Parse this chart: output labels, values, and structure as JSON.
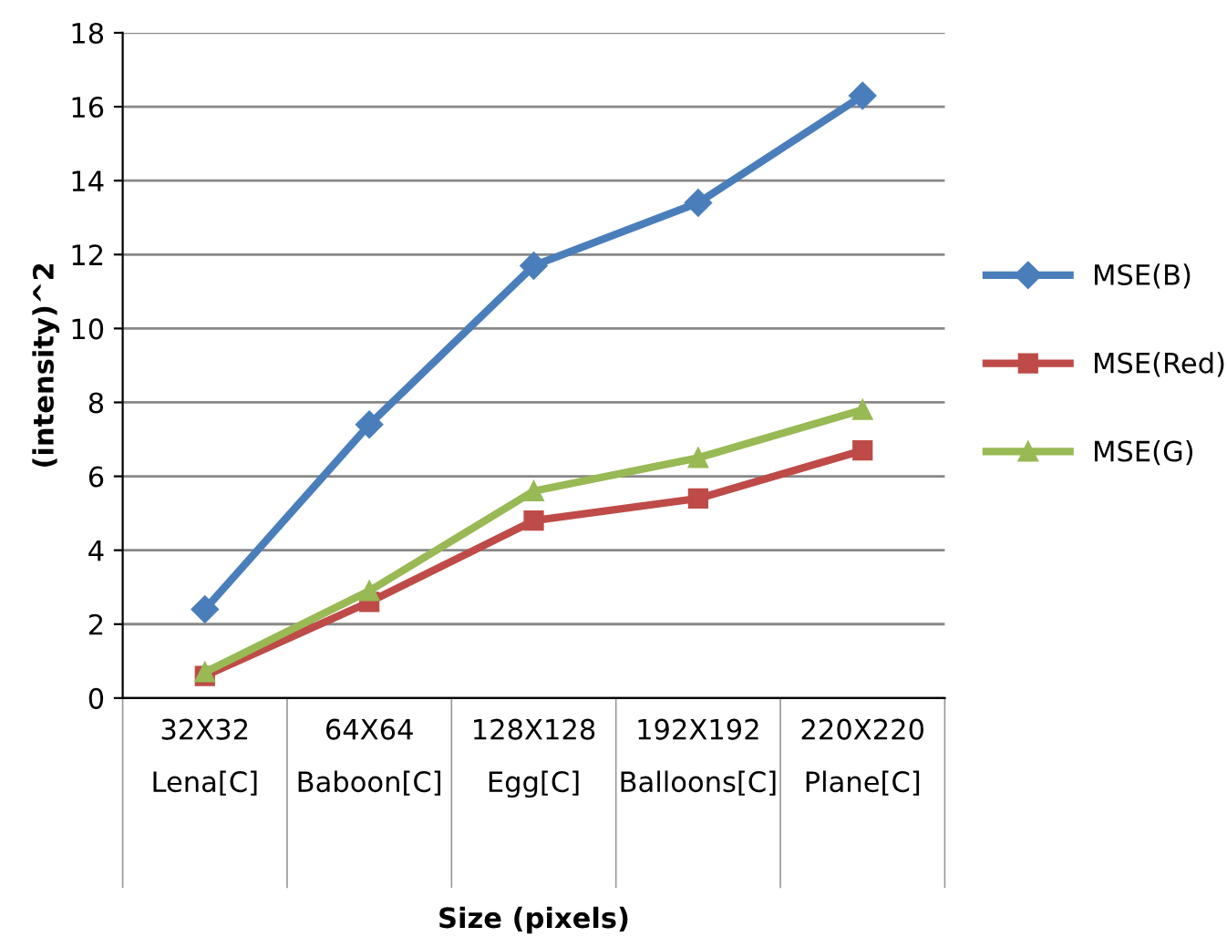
{
  "chart_data": {
    "type": "line",
    "xlabel": "Size (pixels)",
    "ylabel": "(intensity)^2",
    "categories": [
      "32X32\nLena[C]",
      "64X64\nBaboon[C]",
      "128X128\nEgg[C]",
      "192X192\nBalloons[C]",
      "220X220\nPlane[C]"
    ],
    "series": [
      {
        "name": "MSE(B)",
        "color": "#4a7ebb",
        "marker": "diamond",
        "values": [
          2.4,
          7.4,
          11.7,
          13.4,
          16.3
        ]
      },
      {
        "name": "MSE(Red)",
        "color": "#be4b48",
        "marker": "square",
        "values": [
          0.6,
          2.6,
          4.8,
          5.4,
          6.7
        ]
      },
      {
        "name": "MSE(G)",
        "color": "#98b954",
        "marker": "triangle",
        "values": [
          0.7,
          2.9,
          5.6,
          6.5,
          7.8
        ]
      }
    ],
    "ylim": [
      0,
      18
    ],
    "yticks": [
      0,
      2,
      4,
      6,
      8,
      10,
      12,
      14,
      16,
      18
    ],
    "grid": "y",
    "legend": "right",
    "line_style": "solid"
  }
}
